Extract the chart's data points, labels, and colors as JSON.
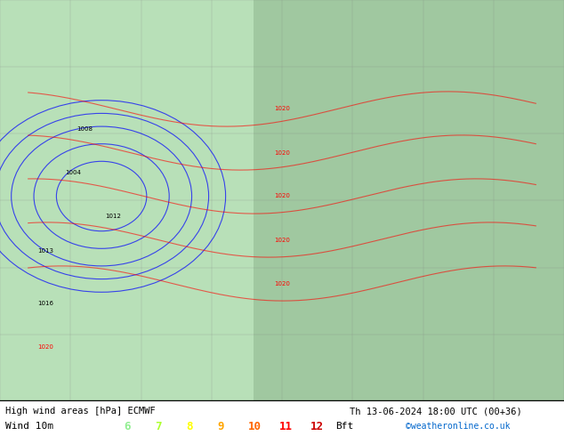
{
  "title_line1": "High wind areas [hPa] ECMWF",
  "title_line2": "Th 13-06-2024 18:00 UTC (00+36)",
  "credit": "©weatheronline.co.uk",
  "wind_label": "Wind 10m",
  "beaufort_values": [
    "6",
    "7",
    "8",
    "9",
    "10",
    "11",
    "12"
  ],
  "beaufort_colors": [
    "#90ee90",
    "#adff2f",
    "#ffff00",
    "#ffa500",
    "#ff4500",
    "#ff0000",
    "#800000"
  ],
  "beaufort_suffix": "Bft",
  "bg_color": "#c8e6c8",
  "map_bg": "#c8e6c8",
  "bottom_bar_color": "#000000",
  "title_bg": "#e8e8e8",
  "figsize": [
    6.34,
    4.9
  ],
  "dpi": 100
}
